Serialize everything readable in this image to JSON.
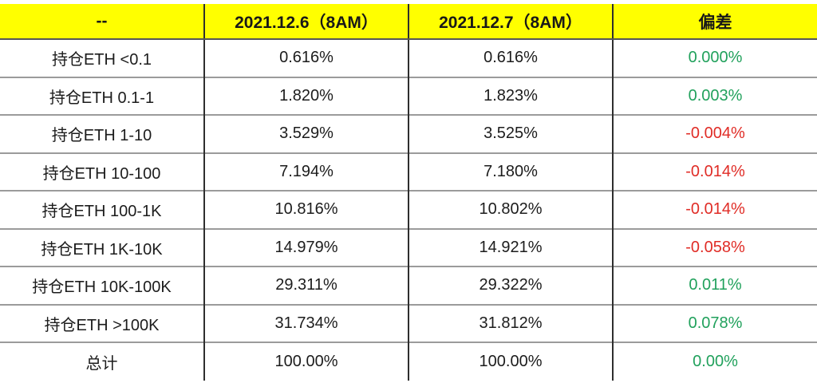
{
  "table": {
    "headers": [
      "--",
      "2021.12.6（8AM）",
      "2021.12.7（8AM）",
      "偏差"
    ],
    "rows": [
      {
        "label": "持仓ETH <0.1",
        "dec6": "0.616%",
        "dec7": "0.616%",
        "deviation": "0.000%",
        "deviation_sign": "positive"
      },
      {
        "label": "持仓ETH 0.1-1",
        "dec6": "1.820%",
        "dec7": "1.823%",
        "deviation": "0.003%",
        "deviation_sign": "positive"
      },
      {
        "label": "持仓ETH 1-10",
        "dec6": "3.529%",
        "dec7": "3.525%",
        "deviation": "-0.004%",
        "deviation_sign": "negative"
      },
      {
        "label": "持仓ETH 10-100",
        "dec6": "7.194%",
        "dec7": "7.180%",
        "deviation": "-0.014%",
        "deviation_sign": "negative"
      },
      {
        "label": "持仓ETH 100-1K",
        "dec6": "10.816%",
        "dec7": "10.802%",
        "deviation": "-0.014%",
        "deviation_sign": "negative"
      },
      {
        "label": "持仓ETH 1K-10K",
        "dec6": "14.979%",
        "dec7": "14.921%",
        "deviation": "-0.058%",
        "deviation_sign": "negative"
      },
      {
        "label": "持仓ETH 10K-100K",
        "dec6": "29.311%",
        "dec7": "29.322%",
        "deviation": "0.011%",
        "deviation_sign": "positive"
      },
      {
        "label": "持仓ETH >100K",
        "dec6": "31.734%",
        "dec7": "31.812%",
        "deviation": "0.078%",
        "deviation_sign": "positive"
      },
      {
        "label": "总计",
        "dec6": "100.00%",
        "dec7": "100.00%",
        "deviation": "0.00%",
        "deviation_sign": "positive"
      }
    ]
  },
  "colors": {
    "header_bg": "#ffff00",
    "positive": "#21a15c",
    "negative": "#e02c26",
    "vertical_rule": "#2e2e2e",
    "horizontal_rule": "#9b9b9b"
  },
  "chart_data": {
    "type": "table",
    "title": "ETH holdings distribution comparison",
    "columns": [
      "--",
      "2021.12.6（8AM）",
      "2021.12.7（8AM）",
      "偏差"
    ],
    "rows": [
      [
        "持仓ETH <0.1",
        "0.616%",
        "0.616%",
        "0.000%"
      ],
      [
        "持仓ETH 0.1-1",
        "1.820%",
        "1.823%",
        "0.003%"
      ],
      [
        "持仓ETH 1-10",
        "3.529%",
        "3.525%",
        "-0.004%"
      ],
      [
        "持仓ETH 10-100",
        "7.194%",
        "7.180%",
        "-0.014%"
      ],
      [
        "持仓ETH 100-1K",
        "10.816%",
        "10.802%",
        "-0.014%"
      ],
      [
        "持仓ETH 1K-10K",
        "14.979%",
        "14.921%",
        "-0.058%"
      ],
      [
        "持仓ETH 10K-100K",
        "29.311%",
        "29.322%",
        "0.011%"
      ],
      [
        "持仓ETH >100K",
        "31.734%",
        "31.812%",
        "0.078%"
      ],
      [
        "总计",
        "100.00%",
        "100.00%",
        "0.00%"
      ]
    ]
  }
}
